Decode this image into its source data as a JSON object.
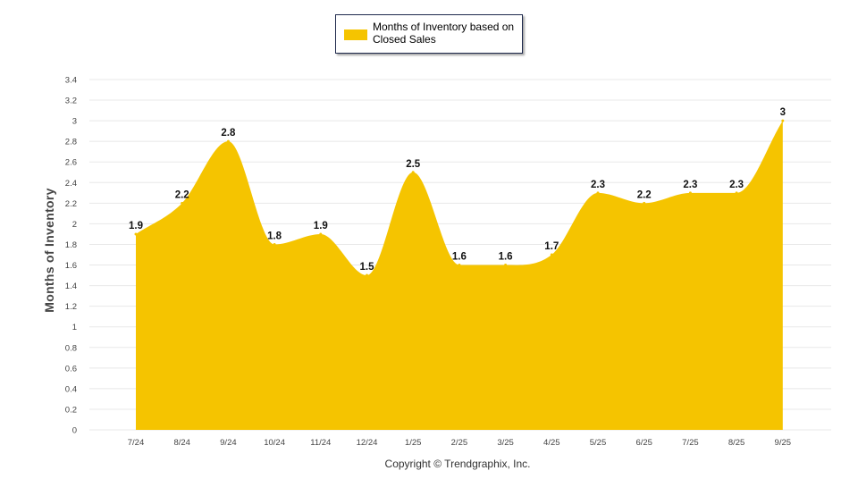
{
  "chart_data": {
    "type": "area",
    "categories": [
      "7/24",
      "8/24",
      "9/24",
      "10/24",
      "11/24",
      "12/24",
      "1/25",
      "2/25",
      "3/25",
      "4/25",
      "5/25",
      "6/25",
      "7/25",
      "8/25",
      "9/25"
    ],
    "series": [
      {
        "name": "Months of Inventory based on Closed Sales",
        "values": [
          1.9,
          2.2,
          2.8,
          1.8,
          1.9,
          1.5,
          2.5,
          1.6,
          1.6,
          1.7,
          2.3,
          2.2,
          2.3,
          2.3,
          3
        ]
      }
    ],
    "data_labels": [
      "1.9",
      "2.2",
      "2.8",
      "1.8",
      "1.9",
      "1.5",
      "2.5",
      "1.6",
      "1.6",
      "1.7",
      "2.3",
      "2.2",
      "2.3",
      "2.3",
      "3"
    ],
    "ylabel": "Months of Inventory",
    "ylim": [
      0,
      3.4
    ],
    "yticks": [
      "0",
      "0.2",
      "0.4",
      "0.6",
      "0.8",
      "1",
      "1.2",
      "1.4",
      "1.6",
      "1.8",
      "2",
      "2.2",
      "2.4",
      "2.6",
      "2.8",
      "3",
      "3.2",
      "3.4"
    ],
    "grid": true,
    "legend_position": "top-center",
    "colors": {
      "fill": "#f5c400",
      "grid": "#e8e8e8",
      "legend_border": "#1f2a4d"
    }
  },
  "footer": {
    "copyright": "Copyright © Trendgraphix, Inc."
  }
}
